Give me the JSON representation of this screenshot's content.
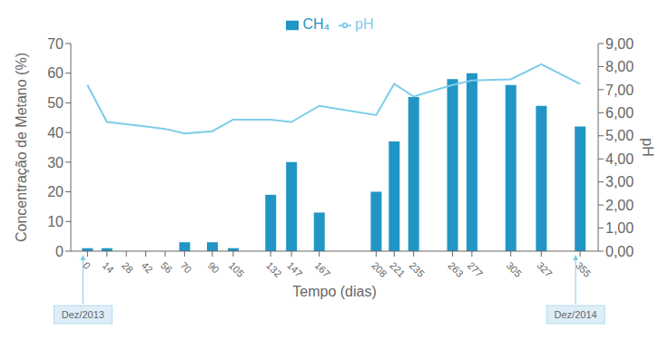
{
  "chart_data": {
    "type": "bar",
    "x": [
      0,
      14,
      28,
      42,
      56,
      70,
      90,
      105,
      132,
      147,
      167,
      208,
      221,
      235,
      263,
      277,
      305,
      327,
      355
    ],
    "series": [
      {
        "name": "CH₄",
        "type": "bar",
        "color": "#2196c4",
        "values": [
          1,
          1,
          0,
          0,
          0,
          3,
          3,
          1,
          19,
          30,
          13,
          20,
          37,
          52,
          58,
          60,
          56,
          49,
          42
        ]
      },
      {
        "name": "pH",
        "type": "line",
        "axis": "y2",
        "color": "#7dcde8",
        "values": [
          7.2,
          5.6,
          5.5,
          5.4,
          5.3,
          5.1,
          5.2,
          5.7,
          5.7,
          5.6,
          6.3,
          5.9,
          7.25,
          6.7,
          7.2,
          7.4,
          7.45,
          8.1,
          7.25
        ]
      }
    ],
    "xlabel": "Tempo (dias)",
    "ylabel": "Concentração de Metano (%)",
    "y2label": "pH",
    "xlim": [
      -12,
      368
    ],
    "xticks": [
      0,
      14,
      28,
      42,
      56,
      70,
      90,
      105,
      132,
      147,
      167,
      208,
      221,
      235,
      263,
      277,
      305,
      327,
      355
    ],
    "ylim": [
      0,
      70
    ],
    "yticks": [
      0,
      10,
      20,
      30,
      40,
      50,
      60,
      70
    ],
    "y2lim": [
      0.0,
      9.0
    ],
    "y2ticks": [
      {
        "value": 0,
        "label": "0,00"
      },
      {
        "value": 1,
        "label": "1,00"
      },
      {
        "value": 2,
        "label": "2,00"
      },
      {
        "value": 3,
        "label": "3,00"
      },
      {
        "value": 4,
        "label": "4,00"
      },
      {
        "value": 5,
        "label": "5,00"
      },
      {
        "value": 6,
        "label": "6,00"
      },
      {
        "value": 7,
        "label": "7,00"
      },
      {
        "value": 8,
        "label": "8,00"
      },
      {
        "value": 9,
        "label": "9,00"
      }
    ],
    "annotations": [
      {
        "x": 0,
        "text": "Dez/2013"
      },
      {
        "x": 355,
        "text": "Dez/2014"
      }
    ],
    "grid": false,
    "legend": "top"
  }
}
